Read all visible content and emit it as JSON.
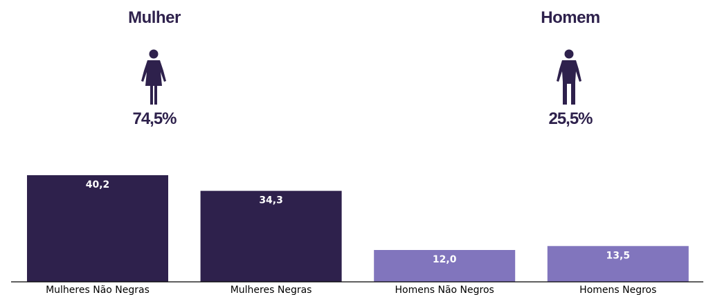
{
  "colors": {
    "dark": "#2e214c",
    "light": "#8175bd",
    "axis": "#000000"
  },
  "header": {
    "female": {
      "title": "Mulher",
      "percent": "74,5%",
      "icon": "female-person-icon"
    },
    "male": {
      "title": "Homem",
      "percent": "25,5%",
      "icon": "male-person-icon"
    }
  },
  "chart_data": {
    "type": "bar",
    "categories": [
      "Mulheres Não Negras",
      "Mulheres Negras",
      "Homens Não Negros",
      "Homens Negros"
    ],
    "values": [
      40.2,
      34.3,
      12.0,
      13.5
    ],
    "value_labels": [
      "40,2",
      "34,3",
      "12,0",
      "13,5"
    ],
    "bar_colors": [
      "#2e214c",
      "#2e214c",
      "#8175bd",
      "#8175bd"
    ],
    "title": "",
    "xlabel": "",
    "ylabel": "",
    "ylim": [
      0,
      41
    ],
    "grid": false,
    "legend": "none"
  }
}
